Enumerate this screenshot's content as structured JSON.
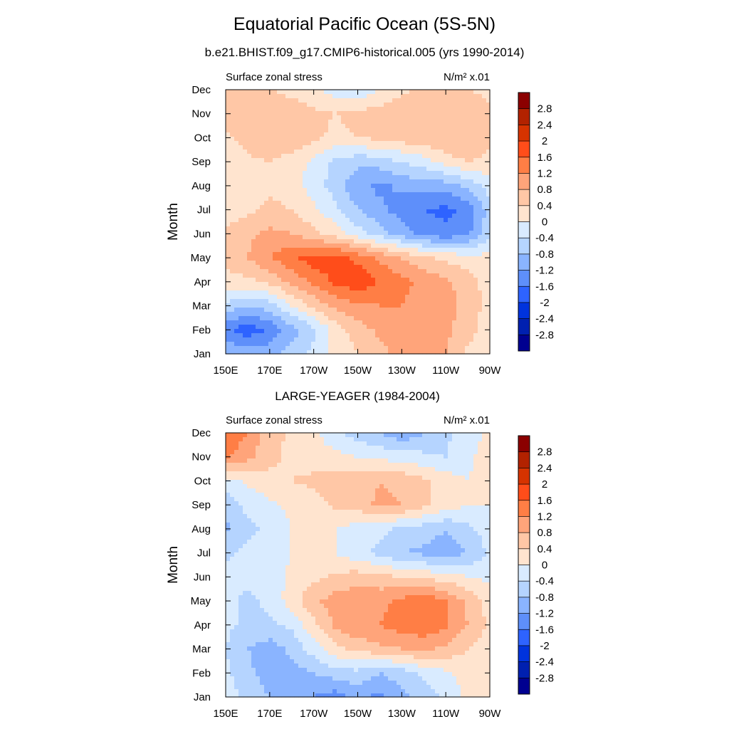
{
  "title": "Equatorial Pacific Ocean (5S-5N)",
  "subtitle": "b.e21.BHIST.f09_g17.CMIP6-historical.005 (yrs 1990-2014)",
  "colorbar": {
    "labels": [
      "2.8",
      "2.4",
      "2",
      "1.6",
      "1.2",
      "0.8",
      "0.4",
      "0",
      "-0.4",
      "-0.8",
      "-1.2",
      "-1.6",
      "-2",
      "-2.4",
      "-2.8"
    ],
    "colors": [
      "#8b0000",
      "#b22200",
      "#d63300",
      "#ff4d1a",
      "#ff7e45",
      "#ffa47a",
      "#ffc7a6",
      "#ffe4cf",
      "#d9ebff",
      "#b5d4ff",
      "#8ab4ff",
      "#5e8ffa",
      "#2e63ff",
      "#0033dd",
      "#0020b0",
      "#000090"
    ]
  },
  "chart_data": [
    {
      "type": "heatmap",
      "title": "",
      "label_left": "Surface zonal stress",
      "units": "N/m² x.01",
      "ylabel": "Month",
      "xlabel": "",
      "x_ticks": [
        "150E",
        "170E",
        "170W",
        "150W",
        "130W",
        "110W",
        "90W"
      ],
      "y_ticks": [
        "Jan",
        "Feb",
        "Mar",
        "Apr",
        "May",
        "Jun",
        "Jul",
        "Aug",
        "Sep",
        "Oct",
        "Nov",
        "Dec"
      ],
      "x": [
        150,
        160,
        170,
        180,
        190,
        200,
        210,
        220,
        230,
        240,
        250,
        260,
        270
      ],
      "y": [
        "Jan",
        "Feb",
        "Mar",
        "Apr",
        "May",
        "Jun",
        "Jul",
        "Aug",
        "Sep",
        "Oct",
        "Nov",
        "Dec"
      ],
      "z": [
        [
          -0.9,
          -0.9,
          -1.0,
          -0.6,
          -0.3,
          0.1,
          0.4,
          0.7,
          0.9,
          1.0,
          0.8,
          0.3,
          0.0
        ],
        [
          -1.5,
          -1.9,
          -1.5,
          -1.0,
          -0.5,
          0.2,
          0.6,
          0.9,
          1.0,
          1.0,
          0.9,
          0.6,
          0.1
        ],
        [
          -0.5,
          -0.8,
          -0.6,
          0.0,
          0.5,
          0.9,
          1.1,
          1.2,
          1.2,
          1.0,
          0.9,
          0.7,
          0.2
        ],
        [
          0.2,
          0.3,
          0.5,
          0.9,
          1.3,
          1.7,
          1.9,
          1.6,
          1.3,
          1.1,
          0.9,
          0.6,
          0.2
        ],
        [
          0.6,
          0.8,
          1.2,
          1.5,
          1.8,
          1.8,
          1.5,
          1.1,
          0.8,
          0.5,
          0.3,
          0.2,
          0.1
        ],
        [
          0.5,
          0.7,
          0.9,
          0.8,
          0.5,
          0.2,
          -0.2,
          -0.6,
          -1.0,
          -1.3,
          -1.5,
          -1.3,
          -0.5
        ],
        [
          0.2,
          0.3,
          0.5,
          0.4,
          0.1,
          -0.3,
          -0.8,
          -1.1,
          -1.4,
          -1.6,
          -1.7,
          -1.5,
          -0.6
        ],
        [
          0.2,
          0.3,
          0.3,
          0.2,
          -0.2,
          -0.6,
          -1.1,
          -1.3,
          -1.1,
          -1.0,
          -1.0,
          -0.7,
          -0.2
        ],
        [
          0.1,
          0.3,
          0.4,
          0.2,
          -0.1,
          -0.5,
          -0.7,
          -0.6,
          -0.4,
          -0.2,
          0.2,
          0.4,
          0.3
        ],
        [
          0.3,
          0.6,
          0.8,
          0.7,
          0.5,
          0.3,
          0.4,
          0.5,
          0.6,
          0.7,
          0.8,
          0.8,
          0.5
        ],
        [
          0.7,
          0.8,
          0.7,
          0.6,
          0.5,
          0.4,
          0.5,
          0.6,
          0.7,
          0.8,
          0.8,
          0.7,
          0.5
        ],
        [
          0.4,
          0.5,
          0.4,
          0.3,
          0.1,
          -0.2,
          -0.3,
          0.0,
          0.3,
          0.5,
          0.5,
          0.4,
          0.3
        ]
      ]
    },
    {
      "type": "heatmap",
      "title": "LARGE-YEAGER (1984-2004)",
      "label_left": "Surface zonal stress",
      "units": "N/m² x.01",
      "ylabel": "Month",
      "xlabel": "",
      "x_ticks": [
        "150E",
        "170E",
        "170W",
        "150W",
        "130W",
        "110W",
        "90W"
      ],
      "y_ticks": [
        "Jan",
        "Feb",
        "Mar",
        "Apr",
        "May",
        "Jun",
        "Jul",
        "Aug",
        "Sep",
        "Oct",
        "Nov",
        "Dec"
      ],
      "x": [
        150,
        160,
        170,
        180,
        190,
        200,
        210,
        220,
        230,
        240,
        250,
        260,
        270
      ],
      "y": [
        "Jan",
        "Feb",
        "Mar",
        "Apr",
        "May",
        "Jun",
        "Jul",
        "Aug",
        "Sep",
        "Oct",
        "Nov",
        "Dec"
      ],
      "z": [
        [
          -0.2,
          -0.5,
          -0.8,
          -1.0,
          -1.2,
          -1.4,
          -1.1,
          -1.3,
          -0.9,
          -0.6,
          -0.3,
          0.1,
          0.1
        ],
        [
          -0.3,
          -0.7,
          -1.0,
          -1.0,
          -0.8,
          -0.6,
          -0.5,
          -0.8,
          -0.6,
          -0.3,
          -0.1,
          0.2,
          0.2
        ],
        [
          -0.4,
          -0.8,
          -1.0,
          -0.7,
          -0.2,
          0.3,
          0.5,
          0.7,
          0.8,
          0.9,
          0.7,
          0.4,
          0.2
        ],
        [
          -0.3,
          -0.5,
          -0.5,
          -0.3,
          0.3,
          0.9,
          1.2,
          1.2,
          1.4,
          1.5,
          1.3,
          0.8,
          0.3
        ],
        [
          -0.3,
          -0.5,
          -0.3,
          0.2,
          0.7,
          1.0,
          1.1,
          1.1,
          1.3,
          1.5,
          1.2,
          0.7,
          0.2
        ],
        [
          -0.2,
          -0.3,
          -0.2,
          0.1,
          0.3,
          0.5,
          0.6,
          0.5,
          0.4,
          0.3,
          0.2,
          0.0,
          -0.1
        ],
        [
          -0.5,
          -0.3,
          -0.2,
          0.0,
          0.1,
          0.0,
          -0.3,
          -0.5,
          -0.8,
          -0.9,
          -1.0,
          -0.8,
          -0.3
        ],
        [
          -0.9,
          -0.5,
          -0.3,
          0.0,
          0.1,
          0.0,
          -0.2,
          -0.3,
          -0.5,
          -0.6,
          -0.8,
          -0.5,
          -0.2
        ],
        [
          -0.6,
          -0.3,
          -0.1,
          0.1,
          0.2,
          0.5,
          0.6,
          0.9,
          0.8,
          0.5,
          0.2,
          0.0,
          0.0
        ],
        [
          -0.2,
          0.1,
          0.3,
          0.4,
          0.5,
          0.6,
          0.6,
          0.8,
          0.7,
          0.5,
          0.2,
          0.0,
          0.3
        ],
        [
          1.3,
          0.9,
          0.5,
          0.3,
          0.2,
          0.1,
          0.0,
          -0.1,
          -0.2,
          -0.3,
          -0.4,
          -0.1,
          0.2
        ],
        [
          1.6,
          1.2,
          0.6,
          0.3,
          0.1,
          -0.3,
          -0.6,
          -0.8,
          -1.1,
          -0.8,
          -0.5,
          -0.2,
          0.1
        ]
      ]
    }
  ]
}
